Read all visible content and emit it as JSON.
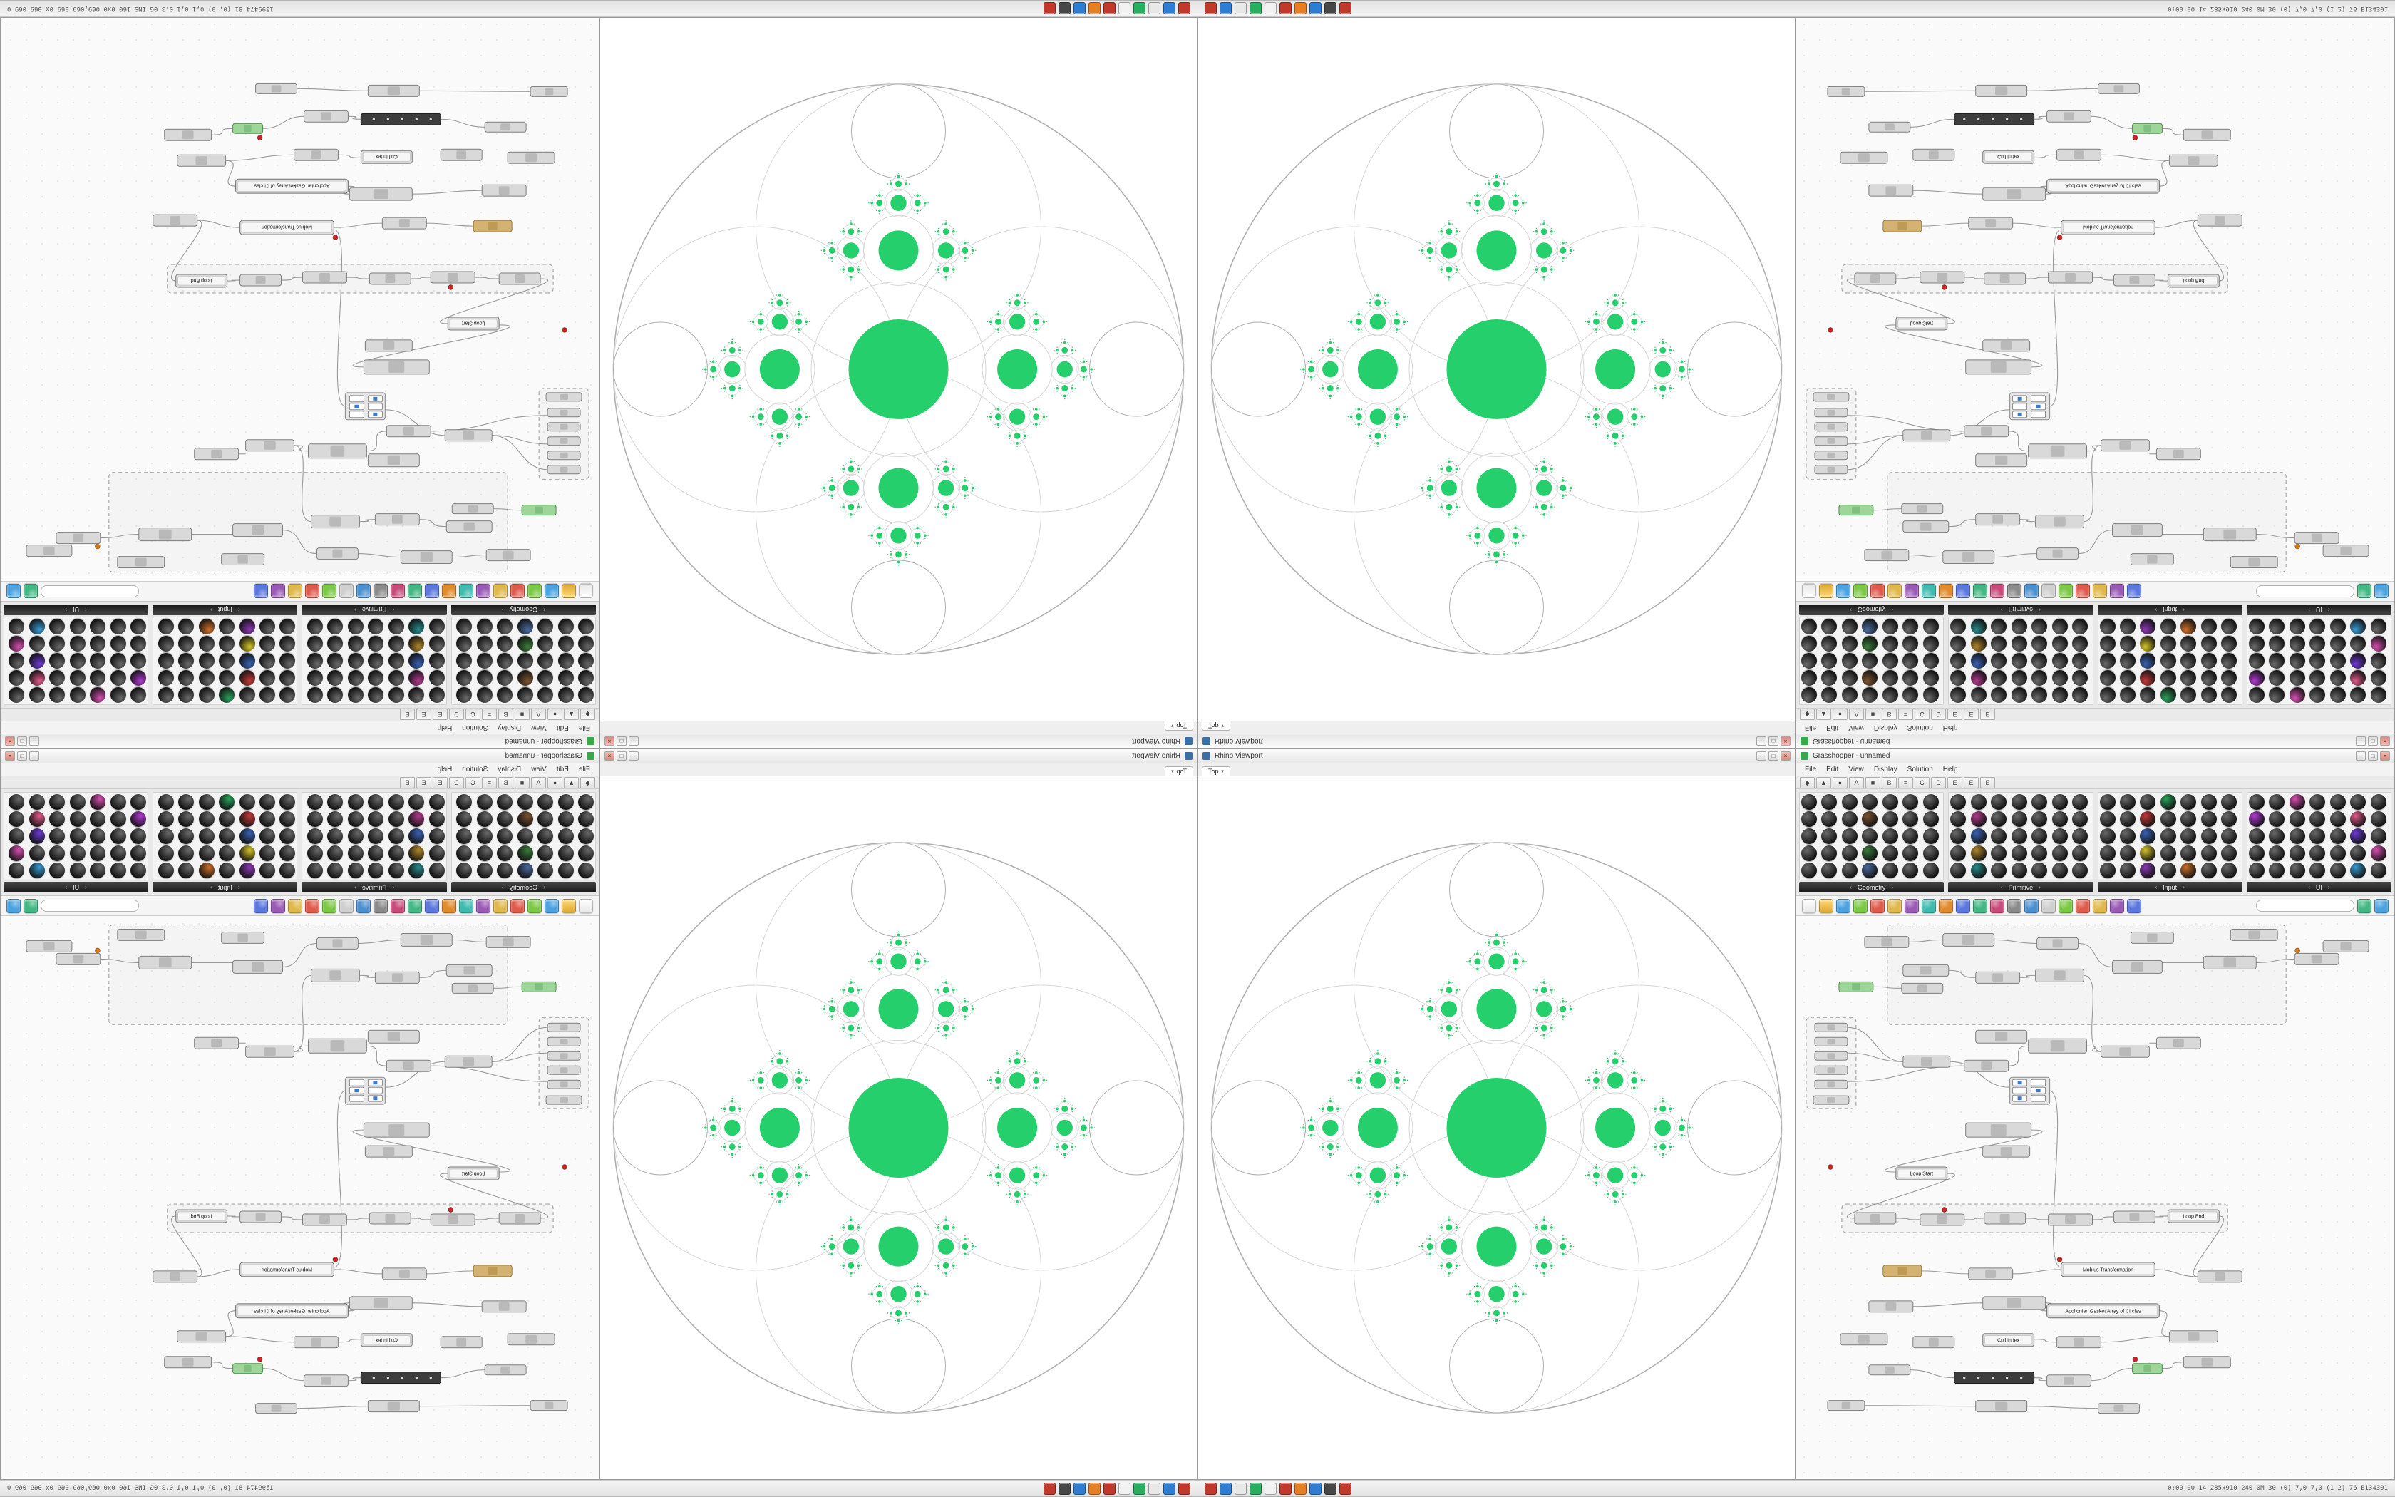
{
  "chrome": {
    "window_buttons": [
      "–",
      "□",
      "×"
    ],
    "strip": {
      "left_text": "1599474 81 (0, 0)  0,1 0,1 0,3  0G INS 160 0x0  069,069,069  0x 069 069 0",
      "right_text": "0:00:00  14  285x910 240  0M 30 (0)  7,0 7,0 (1 2) 76  E134301",
      "taskbar_icons": [
        {
          "name": "stop-icon",
          "color": "#c0392b"
        },
        {
          "name": "chat-icon",
          "color": "#2d7dd2"
        },
        {
          "name": "files-icon",
          "color": "#e8e8e8"
        },
        {
          "name": "media-icon",
          "color": "#27ae60"
        },
        {
          "name": "rhino-app-icon",
          "color": "#f2f2f2"
        },
        {
          "name": "record-icon",
          "color": "#c0392b"
        },
        {
          "name": "palette-icon",
          "color": "#e67e22"
        },
        {
          "name": "browser-icon",
          "color": "#2d7dd2"
        },
        {
          "name": "terminal-icon",
          "color": "#474747"
        },
        {
          "name": "alert-icon",
          "color": "#c0392b"
        }
      ]
    }
  },
  "viewport": {
    "window_title": "Rhino Viewport",
    "tab_label": "Top",
    "fractal": {
      "background": "#ffffff",
      "outer_stroke": "#b0b0b0",
      "ring_stroke": "#d6d6d6",
      "green": "#25cf6b",
      "center_radius_ratio": 0.175,
      "child_ratio": 0.4,
      "spread": 1.7,
      "depth": 5,
      "pole_radius_ratio": 0.165
    }
  },
  "gh": {
    "window_title": "Grasshopper - unnamed",
    "search_value": "",
    "menu_items": [
      "File",
      "Edit",
      "View",
      "Display",
      "Solution",
      "Help"
    ],
    "letter_tabs": [
      "◆",
      "▲",
      "●",
      "A",
      "■",
      "B",
      "≡",
      "C",
      "D",
      "E",
      "E",
      "E"
    ],
    "palette": {
      "arrow_left": "‹",
      "arrow_right": "›",
      "groups": [
        {
          "label": "Geometry",
          "cols": 7,
          "rows": 5,
          "accents": {
            "10": "#7a5230",
            "24": "#3b7a3b",
            "31": "#4a6a9a"
          }
        },
        {
          "label": "Primitive",
          "cols": 7,
          "rows": 5,
          "accents": {
            "8": "#b03a8c",
            "15": "#3a62b0",
            "22": "#b0862a",
            "29": "#2a8a8a"
          }
        },
        {
          "label": "Input",
          "cols": 7,
          "rows": 5,
          "accents": {
            "3": "#2aa05a",
            "9": "#c23a3a",
            "16": "#3a62b0",
            "23": "#d4c42a",
            "30": "#8a3ab0",
            "32": "#cc6f2a"
          }
        },
        {
          "label": "UI",
          "cols": 7,
          "rows": 5,
          "accents": {
            "2": "#d44fae",
            "7": "#b03ad0",
            "12": "#e05a8a",
            "19": "#6a3ad0",
            "27": "#d44fae",
            "33": "#3a9ad0"
          }
        }
      ]
    },
    "toolbar": {
      "icons": [
        {
          "name": "new-file-icon",
          "shape": "page",
          "color": "#ffffff"
        },
        {
          "name": "open-file-icon",
          "shape": "folder",
          "color": "#e0a832"
        },
        {
          "name": "save-icon",
          "shape": "ball",
          "color": "#4aa3e0"
        },
        {
          "name": "zoom-icon",
          "shape": "ball",
          "color": "#7ac943"
        },
        {
          "name": "alert-icon",
          "shape": "ball",
          "color": "#e05a4a"
        },
        {
          "name": "sketch-icon",
          "shape": "ball",
          "color": "#e0b84a"
        },
        {
          "name": "group-icon",
          "shape": "ball",
          "color": "#9b59b6"
        },
        {
          "name": "cluster-icon",
          "shape": "ball",
          "color": "#3dbbaf"
        },
        {
          "name": "bake-icon",
          "shape": "ball",
          "color": "#e08a2a"
        },
        {
          "name": "preview-icon",
          "shape": "ball",
          "color": "#5a77e0"
        },
        {
          "name": "wire-icon",
          "shape": "ball",
          "color": "#41b883"
        },
        {
          "name": "solver-icon",
          "shape": "ball",
          "color": "#c94a7a"
        },
        {
          "name": "lock-icon",
          "shape": "ball",
          "color": "#8a8a8a"
        },
        {
          "name": "gumball-icon",
          "shape": "ball",
          "color": "#4a90d0"
        },
        {
          "name": "frame-icon",
          "shape": "ball",
          "color": "#cfcfcf"
        },
        {
          "name": "mesh-icon",
          "shape": "ball",
          "color": "#7ac943"
        },
        {
          "name": "shader-icon",
          "shape": "ball",
          "color": "#e05a4a"
        },
        {
          "name": "camera-icon",
          "shape": "ball",
          "color": "#e0b84a"
        },
        {
          "name": "script-icon",
          "shape": "ball",
          "color": "#9b59b6"
        },
        {
          "name": "settings-icon",
          "shape": "ball",
          "color": "#5a77e0"
        }
      ],
      "right_icons": [
        {
          "name": "grid-view-icon",
          "shape": "ball",
          "color": "#41b883"
        },
        {
          "name": "canvas-map-icon",
          "shape": "ball",
          "color": "#4aa3e0"
        }
      ]
    },
    "canvas": {
      "nodes": [
        [
          96,
          28,
          62,
          16,
          0,
          ""
        ],
        [
          206,
          24,
          72,
          18,
          0,
          ""
        ],
        [
          338,
          30,
          58,
          16,
          0,
          ""
        ],
        [
          470,
          22,
          60,
          16,
          0,
          ""
        ],
        [
          610,
          18,
          66,
          16,
          0,
          ""
        ],
        [
          740,
          34,
          64,
          16,
          0,
          ""
        ],
        [
          60,
          92,
          48,
          14,
          1,
          ""
        ],
        [
          150,
          68,
          64,
          16,
          0,
          ""
        ],
        [
          148,
          94,
          58,
          14,
          0,
          ""
        ],
        [
          252,
          78,
          62,
          16,
          0,
          ""
        ],
        [
          336,
          74,
          68,
          18,
          0,
          ""
        ],
        [
          444,
          62,
          70,
          18,
          0,
          ""
        ],
        [
          572,
          56,
          74,
          18,
          0,
          ""
        ],
        [
          700,
          52,
          62,
          16,
          0,
          ""
        ],
        [
          26,
          150,
          46,
          12,
          0,
          ""
        ],
        [
          26,
          170,
          46,
          12,
          0,
          ""
        ],
        [
          26,
          190,
          46,
          12,
          0,
          ""
        ],
        [
          26,
          210,
          46,
          12,
          0,
          ""
        ],
        [
          26,
          230,
          46,
          12,
          0,
          ""
        ],
        [
          24,
          252,
          50,
          12,
          0,
          ""
        ],
        [
          150,
          196,
          66,
          16,
          0,
          ""
        ],
        [
          236,
          202,
          62,
          16,
          0,
          ""
        ],
        [
          252,
          160,
          72,
          18,
          0,
          ""
        ],
        [
          326,
          172,
          82,
          20,
          0,
          ""
        ],
        [
          428,
          182,
          68,
          16,
          0,
          ""
        ],
        [
          506,
          170,
          62,
          16,
          0,
          ""
        ],
        [
          300,
          226,
          56,
          38,
          4,
          ""
        ],
        [
          238,
          290,
          92,
          20,
          0,
          ""
        ],
        [
          262,
          322,
          66,
          16,
          0,
          ""
        ],
        [
          140,
          352,
          72,
          18,
          0,
          "Loop Start"
        ],
        [
          82,
          416,
          58,
          16,
          0,
          ""
        ],
        [
          174,
          418,
          62,
          16,
          0,
          ""
        ],
        [
          264,
          416,
          58,
          16,
          0,
          ""
        ],
        [
          354,
          418,
          62,
          16,
          0,
          ""
        ],
        [
          446,
          414,
          58,
          16,
          0,
          ""
        ],
        [
          522,
          412,
          72,
          18,
          0,
          "Loop End"
        ],
        [
          122,
          490,
          54,
          16,
          2,
          ""
        ],
        [
          242,
          494,
          62,
          16,
          0,
          ""
        ],
        [
          372,
          486,
          132,
          20,
          5,
          "Mobius Transformation"
        ],
        [
          564,
          498,
          62,
          16,
          0,
          ""
        ],
        [
          102,
          540,
          62,
          16,
          0,
          ""
        ],
        [
          262,
          534,
          88,
          18,
          0,
          ""
        ],
        [
          352,
          544,
          158,
          20,
          5,
          "Apollonian Gasket Array of Circles"
        ],
        [
          62,
          586,
          66,
          16,
          0,
          ""
        ],
        [
          164,
          590,
          58,
          16,
          0,
          ""
        ],
        [
          262,
          586,
          72,
          18,
          0,
          "Cull Index"
        ],
        [
          366,
          590,
          62,
          16,
          0,
          ""
        ],
        [
          524,
          582,
          68,
          16,
          0,
          ""
        ],
        [
          102,
          630,
          58,
          14,
          0,
          ""
        ],
        [
          222,
          640,
          112,
          16,
          3,
          ""
        ],
        [
          352,
          644,
          62,
          16,
          0,
          ""
        ],
        [
          472,
          628,
          42,
          14,
          1,
          ""
        ],
        [
          544,
          618,
          66,
          16,
          0,
          ""
        ],
        [
          44,
          680,
          52,
          14,
          0,
          ""
        ],
        [
          252,
          680,
          72,
          16,
          0,
          ""
        ],
        [
          424,
          684,
          58,
          14,
          0,
          ""
        ]
      ],
      "wires": [
        [
          158,
          36,
          206,
          33
        ],
        [
          278,
          33,
          338,
          38
        ],
        [
          396,
          38,
          444,
          71
        ],
        [
          514,
          65,
          572,
          65
        ],
        [
          646,
          65,
          700,
          60
        ],
        [
          108,
          99,
          148,
          101
        ],
        [
          214,
          76,
          252,
          86
        ],
        [
          314,
          86,
          336,
          83
        ],
        [
          404,
          83,
          428,
          190
        ],
        [
          496,
          178,
          506,
          178
        ],
        [
          72,
          156,
          150,
          204
        ],
        [
          72,
          192,
          150,
          204
        ],
        [
          72,
          232,
          236,
          210
        ],
        [
          216,
          204,
          300,
          240
        ],
        [
          298,
          210,
          326,
          182
        ],
        [
          408,
          182,
          428,
          190
        ],
        [
          356,
          245,
          372,
          493
        ],
        [
          330,
          300,
          140,
          359
        ],
        [
          212,
          361,
          82,
          424
        ],
        [
          140,
          424,
          174,
          426
        ],
        [
          236,
          426,
          264,
          424
        ],
        [
          322,
          424,
          354,
          426
        ],
        [
          416,
          426,
          446,
          422
        ],
        [
          504,
          422,
          522,
          421
        ],
        [
          594,
          421,
          564,
          506
        ],
        [
          176,
          498,
          242,
          502
        ],
        [
          304,
          502,
          372,
          496
        ],
        [
          504,
          496,
          564,
          506
        ],
        [
          164,
          548,
          262,
          543
        ],
        [
          350,
          543,
          352,
          554
        ],
        [
          510,
          554,
          524,
          590
        ],
        [
          334,
          594,
          366,
          598
        ],
        [
          428,
          598,
          524,
          590
        ],
        [
          160,
          637,
          222,
          648
        ],
        [
          334,
          648,
          352,
          652
        ],
        [
          414,
          652,
          472,
          635
        ],
        [
          514,
          635,
          544,
          626
        ],
        [
          96,
          687,
          252,
          688
        ],
        [
          324,
          688,
          424,
          691
        ]
      ],
      "group_boxes": [
        [
          64,
          404,
          542,
          40
        ],
        [
          128,
          12,
          560,
          140
        ],
        [
          14,
          142,
          70,
          128
        ]
      ],
      "dots": [
        [
          370,
          482,
          "#cc2222"
        ],
        [
          208,
          412,
          "#cc2222"
        ],
        [
          704,
          48,
          "#dd7711"
        ],
        [
          476,
          622,
          "#cc2222"
        ],
        [
          48,
          352,
          "#cc2222"
        ]
      ]
    }
  }
}
